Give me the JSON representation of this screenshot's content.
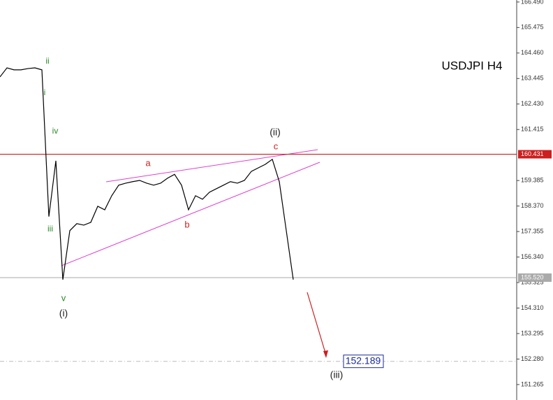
{
  "chart_data": {
    "type": "line",
    "values": [
      163.51,
      163.87,
      163.79,
      163.79,
      163.84,
      163.87,
      163.79,
      157.95,
      160.17,
      155.44,
      157.39,
      157.67,
      157.61,
      157.72,
      158.36,
      158.22,
      158.78,
      159.2,
      159.28,
      159.34,
      159.39,
      159.28,
      159.2,
      159.28,
      159.48,
      159.63,
      159.2,
      158.22,
      158.78,
      158.64,
      158.92,
      159.06,
      159.2,
      159.34,
      159.28,
      159.39,
      159.75,
      159.89,
      160.03,
      160.23,
      159.34,
      157.39,
      155.44
    ],
    "color": "#000000",
    "ylim": [
      150.65,
      166.57
    ],
    "yticks": [
      {
        "value": 166.49,
        "label": "166.490"
      },
      {
        "value": 165.475,
        "label": "165.475"
      },
      {
        "value": 164.46,
        "label": "164.460"
      },
      {
        "value": 163.445,
        "label": "163.445"
      },
      {
        "value": 162.43,
        "label": "162.430"
      },
      {
        "value": 161.415,
        "label": "161.415"
      },
      {
        "value": 159.385,
        "label": "159.385"
      },
      {
        "value": 158.37,
        "label": "158.370"
      },
      {
        "value": 157.355,
        "label": "157.355"
      },
      {
        "value": 156.34,
        "label": "156.340"
      },
      {
        "value": 155.325,
        "label": "155.325"
      },
      {
        "value": 154.31,
        "label": "154.310"
      },
      {
        "value": 153.295,
        "label": "153.295"
      },
      {
        "value": 152.28,
        "label": "152.280"
      },
      {
        "value": 151.265,
        "label": "151.265"
      }
    ],
    "hlines": [
      {
        "value": 160.431,
        "label": "160.431",
        "color": "#cc1f1f"
      },
      {
        "value": 155.52,
        "label": "155.520",
        "color": "#aaaaaa"
      },
      {
        "value": 152.189,
        "label": "152.189",
        "color": "#1a2a9a"
      }
    ],
    "annotations": [
      {
        "text": "USDJPI H4",
        "color": "#000000"
      },
      {
        "text": "ii",
        "color": "#2a8a2a"
      },
      {
        "text": "i",
        "color": "#2a8a2a"
      },
      {
        "text": "iv",
        "color": "#2a8a2a"
      },
      {
        "text": "iii",
        "color": "#2a8a2a"
      },
      {
        "text": "v",
        "color": "#2a8a2a"
      },
      {
        "text": "(i)",
        "color": "#222222"
      },
      {
        "text": "a",
        "color": "#d02020"
      },
      {
        "text": "b",
        "color": "#d02020"
      },
      {
        "text": "c",
        "color": "#d02020"
      },
      {
        "text": "(ii)",
        "color": "#222222"
      },
      {
        "text": "(iii)",
        "color": "#222222"
      }
    ]
  }
}
